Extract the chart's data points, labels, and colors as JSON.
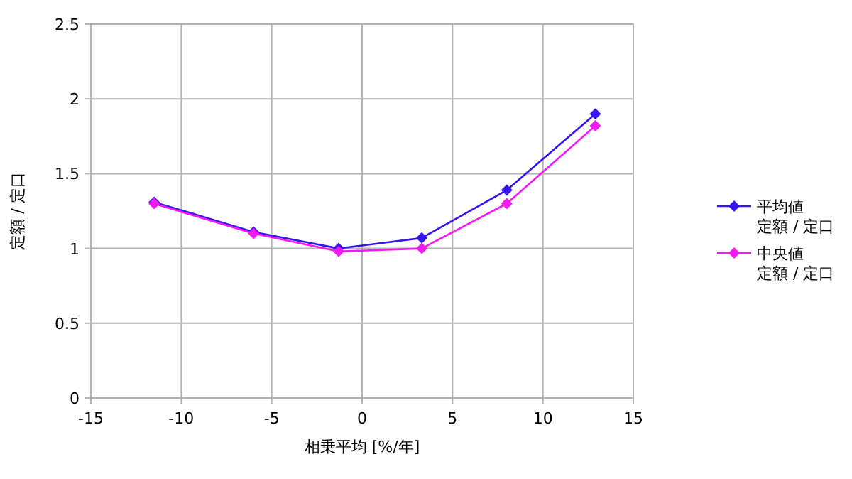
{
  "chart_data": {
    "type": "line",
    "xlabel": "相乗平均 [%/年]",
    "ylabel": "定額 / 定口",
    "x": [
      -11.5,
      -6.0,
      -1.3,
      3.3,
      8.0,
      12.9
    ],
    "series": [
      {
        "name": "平均値定額 / 定口",
        "color": "#3314f2",
        "values": [
          1.31,
          1.11,
          1.0,
          1.07,
          1.39,
          1.9
        ]
      },
      {
        "name": "中央値定額 / 定口",
        "color": "#f219f2",
        "values": [
          1.3,
          1.1,
          0.98,
          1.0,
          1.3,
          1.82
        ]
      }
    ],
    "xlim": [
      -15,
      15
    ],
    "xticks": [
      -15,
      -10,
      -5,
      0,
      5,
      10,
      15
    ],
    "ylim": [
      0,
      2.5
    ],
    "yticks": [
      0,
      0.5,
      1,
      1.5,
      2,
      2.5
    ],
    "grid": true,
    "legend": "right",
    "marker": "diamond",
    "line_style": "solid"
  }
}
